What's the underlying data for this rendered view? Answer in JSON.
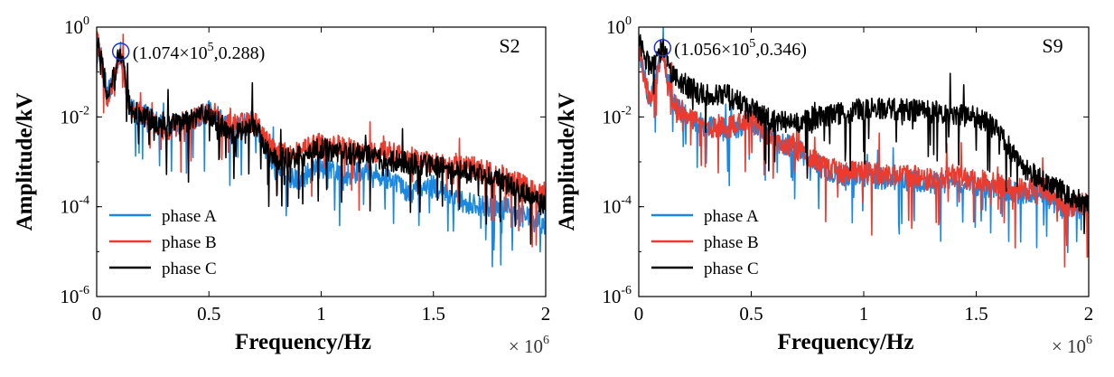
{
  "colors": {
    "phase_a": "#1a88e0",
    "phase_b": "#ee3a2c",
    "phase_c": "#000000",
    "marker": "#2233cc"
  },
  "chart_data": [
    {
      "type": "line",
      "panel_label": "S2",
      "xlabel": "Frequency/Hz",
      "ylabel": "Amplitude/kV",
      "x_multiplier": "× 10",
      "x_multiplier_exp": "6",
      "xlim": [
        0,
        2000000
      ],
      "ylim": [
        1e-06,
        1
      ],
      "yscale": "log",
      "xticks": [
        {
          "v": 0,
          "label": "0"
        },
        {
          "v": 500000,
          "label": "0.5"
        },
        {
          "v": 1000000,
          "label": "1"
        },
        {
          "v": 1500000,
          "label": "1.5"
        },
        {
          "v": 2000000,
          "label": "2"
        }
      ],
      "yticks": [
        {
          "v": 1,
          "base": "10",
          "exp": "0"
        },
        {
          "v": 0.01,
          "base": "10",
          "exp": "-2"
        },
        {
          "v": 0.0001,
          "base": "10",
          "exp": "-4"
        },
        {
          "v": 1e-06,
          "base": "10",
          "exp": "-6"
        }
      ],
      "legend_position": "bottom-left",
      "annotation": {
        "text": "(1.074×10",
        "exp": "5",
        "tail": ",0.288)",
        "x": 107400,
        "y": 0.288
      },
      "series": [
        {
          "name": "phase A",
          "x": [
            0,
            50000,
            107400,
            150000,
            200000,
            300000,
            400000,
            500000,
            600000,
            700000,
            800000,
            900000,
            1000000,
            1100000,
            1200000,
            1300000,
            1400000,
            1500000,
            1600000,
            1700000,
            1800000,
            1900000,
            2000000
          ],
          "y": [
            0.7,
            0.03,
            0.27,
            0.015,
            0.012,
            0.006,
            0.007,
            0.015,
            0.005,
            0.008,
            0.0006,
            0.0004,
            0.0008,
            0.0005,
            0.0007,
            0.0004,
            0.0002,
            0.0003,
            0.00015,
            0.0001,
            0.0001,
            6e-05,
            4e-05
          ]
        },
        {
          "name": "phase B",
          "x": [
            0,
            50000,
            107400,
            150000,
            200000,
            300000,
            400000,
            500000,
            600000,
            700000,
            800000,
            900000,
            1000000,
            1100000,
            1200000,
            1300000,
            1400000,
            1500000,
            1600000,
            1700000,
            1800000,
            1900000,
            2000000
          ],
          "y": [
            0.7,
            0.02,
            0.27,
            0.014,
            0.011,
            0.005,
            0.008,
            0.013,
            0.006,
            0.008,
            0.0015,
            0.0018,
            0.0025,
            0.002,
            0.0018,
            0.0016,
            0.0012,
            0.001,
            0.0009,
            0.0007,
            0.0005,
            0.0003,
            0.00015
          ]
        },
        {
          "name": "phase C",
          "x": [
            0,
            50000,
            107400,
            150000,
            200000,
            300000,
            400000,
            500000,
            600000,
            700000,
            800000,
            900000,
            1000000,
            1100000,
            1200000,
            1300000,
            1400000,
            1500000,
            1600000,
            1700000,
            1800000,
            1900000,
            2000000
          ],
          "y": [
            0.6,
            0.03,
            0.288,
            0.013,
            0.011,
            0.006,
            0.008,
            0.012,
            0.004,
            0.006,
            0.001,
            0.0013,
            0.002,
            0.0015,
            0.0014,
            0.0011,
            0.0009,
            0.0008,
            0.0007,
            0.0005,
            0.0004,
            0.0002,
            0.0001
          ]
        }
      ]
    },
    {
      "type": "line",
      "panel_label": "S9",
      "xlabel": "Frequency/Hz",
      "ylabel": "Amplitude/kV",
      "x_multiplier": "× 10",
      "x_multiplier_exp": "6",
      "xlim": [
        0,
        2000000
      ],
      "ylim": [
        1e-06,
        1
      ],
      "yscale": "log",
      "xticks": [
        {
          "v": 0,
          "label": "0"
        },
        {
          "v": 500000,
          "label": "0.5"
        },
        {
          "v": 1000000,
          "label": "1"
        },
        {
          "v": 1500000,
          "label": "1.5"
        },
        {
          "v": 2000000,
          "label": "2"
        }
      ],
      "yticks": [
        {
          "v": 1,
          "base": "10",
          "exp": "0"
        },
        {
          "v": 0.01,
          "base": "10",
          "exp": "-2"
        },
        {
          "v": 0.0001,
          "base": "10",
          "exp": "-4"
        },
        {
          "v": 1e-06,
          "base": "10",
          "exp": "-6"
        }
      ],
      "legend_position": "bottom-left",
      "annotation": {
        "text": "(1.056×10",
        "exp": "5",
        "tail": ",0.346)",
        "x": 105600,
        "y": 0.346
      },
      "series": [
        {
          "name": "phase A",
          "x": [
            0,
            50000,
            105600,
            150000,
            200000,
            300000,
            400000,
            500000,
            600000,
            700000,
            800000,
            900000,
            1000000,
            1100000,
            1200000,
            1300000,
            1400000,
            1500000,
            1600000,
            1700000,
            1800000,
            1900000,
            2000000
          ],
          "y": [
            0.3,
            0.02,
            0.3,
            0.02,
            0.012,
            0.006,
            0.005,
            0.008,
            0.003,
            0.002,
            0.0008,
            0.0005,
            0.0005,
            0.0004,
            0.0004,
            0.0003,
            0.0004,
            0.0003,
            0.00025,
            0.0002,
            0.0002,
            8e-05,
            0.0001
          ]
        },
        {
          "name": "phase B",
          "x": [
            0,
            50000,
            105600,
            150000,
            200000,
            300000,
            400000,
            500000,
            600000,
            700000,
            800000,
            900000,
            1000000,
            1100000,
            1200000,
            1300000,
            1400000,
            1500000,
            1600000,
            1700000,
            1800000,
            1900000,
            2000000
          ],
          "y": [
            0.3,
            0.02,
            0.32,
            0.02,
            0.012,
            0.006,
            0.006,
            0.009,
            0.003,
            0.002,
            0.0009,
            0.0006,
            0.0006,
            0.0005,
            0.0005,
            0.0004,
            0.0005,
            0.0004,
            0.0003,
            0.00025,
            0.00025,
            0.0001,
            0.00012
          ]
        },
        {
          "name": "phase C",
          "x": [
            0,
            50000,
            105600,
            150000,
            200000,
            300000,
            400000,
            500000,
            600000,
            700000,
            800000,
            900000,
            1000000,
            1100000,
            1200000,
            1300000,
            1400000,
            1500000,
            1600000,
            1700000,
            1800000,
            1900000,
            2000000
          ],
          "y": [
            0.5,
            0.12,
            0.346,
            0.08,
            0.05,
            0.03,
            0.03,
            0.015,
            0.008,
            0.007,
            0.01,
            0.012,
            0.015,
            0.015,
            0.014,
            0.013,
            0.012,
            0.01,
            0.005,
            0.0008,
            0.0004,
            0.0002,
            0.0001
          ]
        }
      ]
    }
  ]
}
